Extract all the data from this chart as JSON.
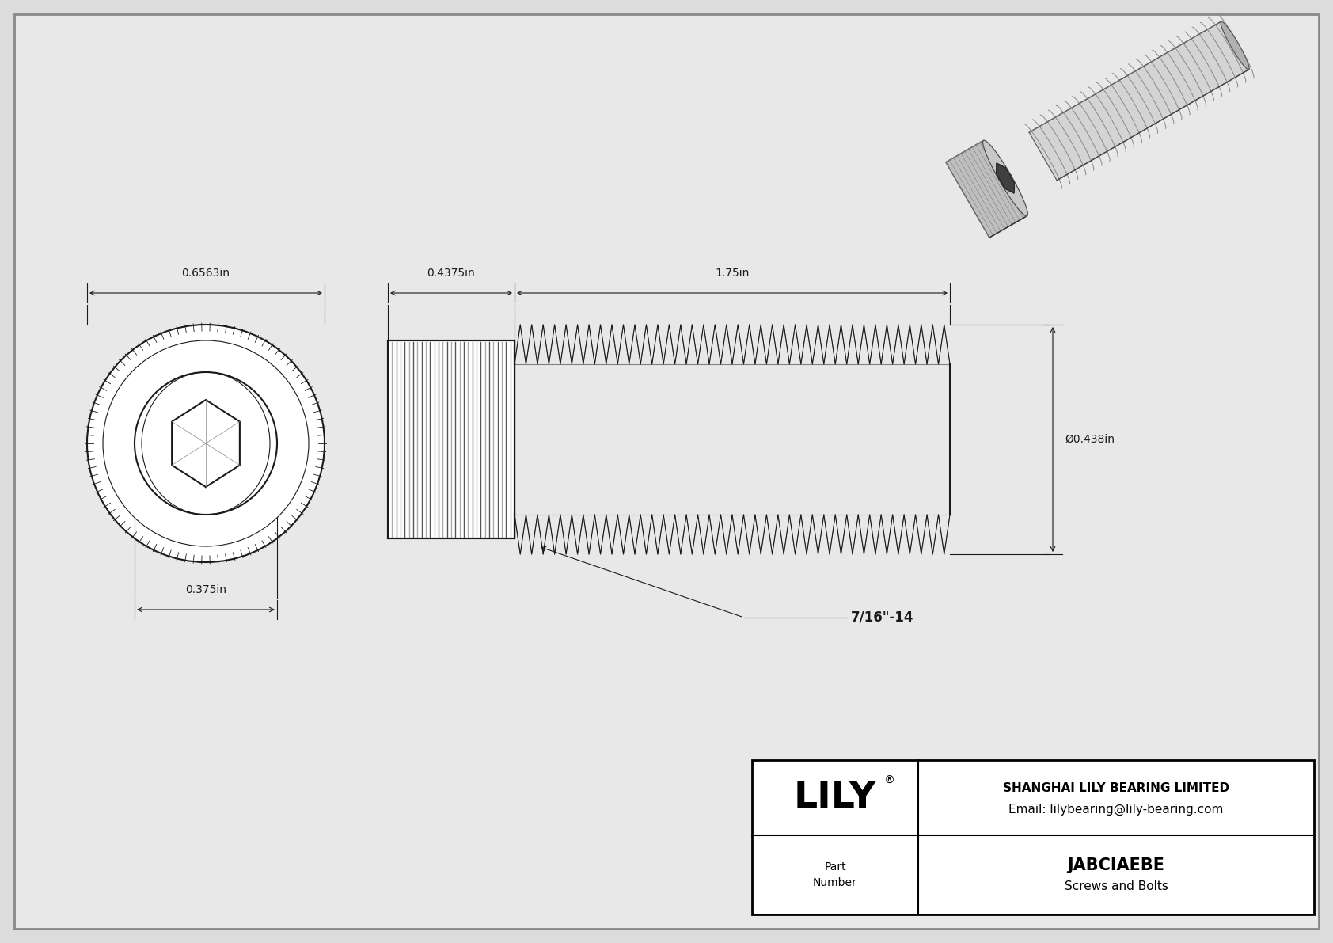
{
  "bg_color": "#dcdcdc",
  "drawing_bg": "#e8e8e8",
  "border_color": "#000000",
  "line_color": "#1a1a1a",
  "dim_color": "#1a1a1a",
  "title_company": "SHANGHAI LILY BEARING LIMITED",
  "title_email": "Email: lilybearing@lily-bearing.com",
  "part_number": "JABCIAEBE",
  "part_category": "Screws and Bolts",
  "logo_text": "LILY",
  "dim_head_width": "0.6563in",
  "dim_head_length": "0.4375in",
  "dim_shaft_length": "1.75in",
  "dim_shaft_dia": "Ø0.438in",
  "dim_socket": "0.375in",
  "dim_thread": "7/16\"-14",
  "font_size_dim": 10,
  "font_size_logo": 34,
  "font_size_title": 11,
  "font_size_part": 15,
  "font_size_label": 10
}
